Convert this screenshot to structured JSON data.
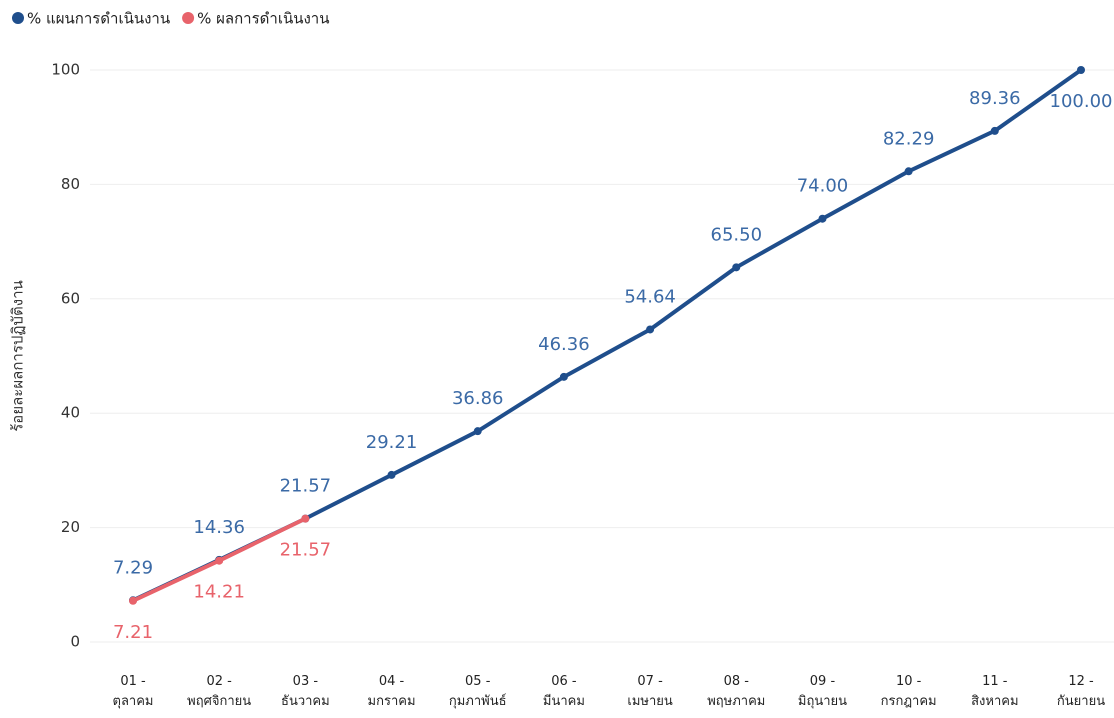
{
  "chart_data": {
    "type": "line",
    "y_label": "ร้อยละผลการปฏิบัติงาน",
    "categories": [
      "01 -\nตุลาคม",
      "02 -\nพฤศจิกายน",
      "03 -\nธันวาคม",
      "04 -\nมกราคม",
      "05 -\nกุมภาพันธ์",
      "06 -\nมีนาคม",
      "07 -\nเมษายน",
      "08 -\nพฤษภาคม",
      "09 -\nมิถุนายน",
      "10 -\nกรกฎาคม",
      "11 -\nสิงหาคม",
      "12 -\nกันยายน"
    ],
    "series": [
      {
        "name": "% แผนการดำเนินงาน",
        "color": "#1f4e8c",
        "label_color": "#3b6aa6",
        "values": [
          7.29,
          14.36,
          21.57,
          29.21,
          36.86,
          46.36,
          54.64,
          65.5,
          74,
          82.29,
          89.36,
          100
        ],
        "value_labels": [
          "7.29",
          "14.36",
          "21.57",
          "29.21",
          "36.86",
          "46.36",
          "54.64",
          "65.50",
          "74.00",
          "82.29",
          "89.36",
          "100.00"
        ]
      },
      {
        "name": "% ผลการดำเนินงาน",
        "color": "#e8636b",
        "label_color": "#e8636b",
        "values": [
          7.21,
          14.21,
          21.57,
          null,
          null,
          null,
          null,
          null,
          null,
          null,
          null,
          null
        ],
        "value_labels": [
          "7.21",
          "14.21",
          "21.57",
          null,
          null,
          null,
          null,
          null,
          null,
          null,
          null,
          null
        ]
      }
    ],
    "ylim": [
      0,
      100
    ],
    "yticks": [
      0,
      20,
      40,
      60,
      80,
      100
    ],
    "grid": true,
    "legend": "top-left"
  }
}
